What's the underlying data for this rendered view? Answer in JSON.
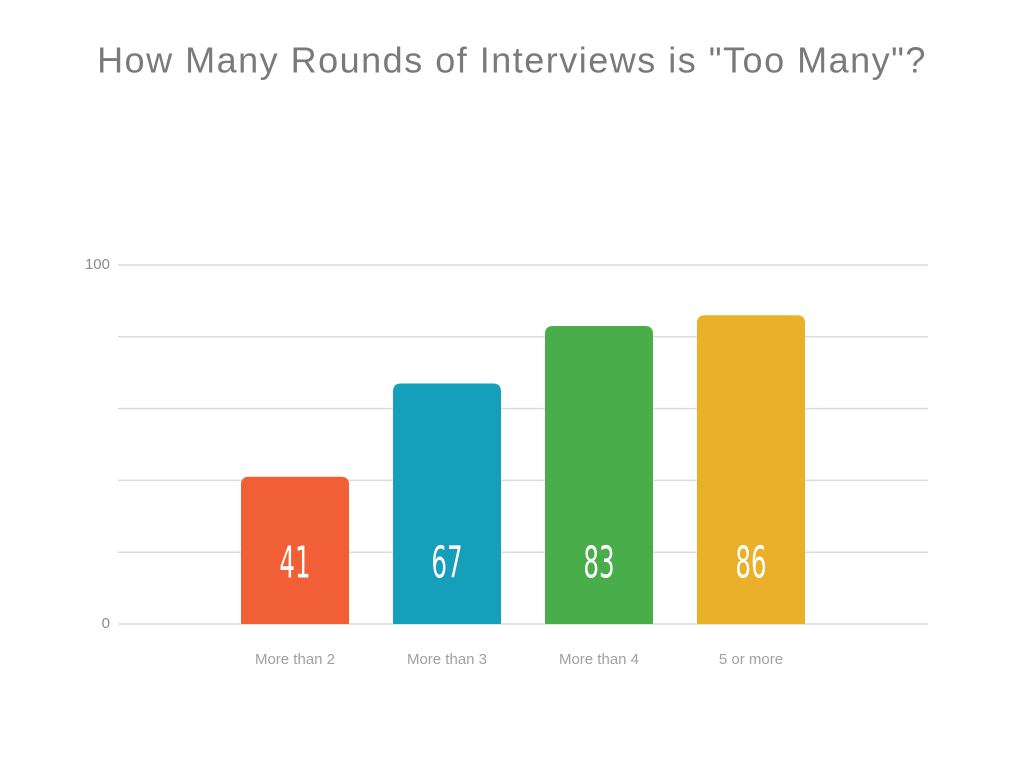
{
  "chart_data": {
    "type": "bar",
    "title": "How Many Rounds of Interviews is \"Too Many\"?",
    "categories": [
      "More than 2",
      "More than 3",
      "More than 4",
      "5 or more"
    ],
    "values": [
      41,
      67,
      83,
      86
    ],
    "colors": [
      "#f05f35",
      "#159fbb",
      "#49ad4a",
      "#ebb02a"
    ],
    "ylim": [
      0,
      100
    ],
    "yticks": [
      0,
      100
    ],
    "ygrid": [
      0,
      20,
      40,
      60,
      80,
      100
    ],
    "grid": true
  }
}
